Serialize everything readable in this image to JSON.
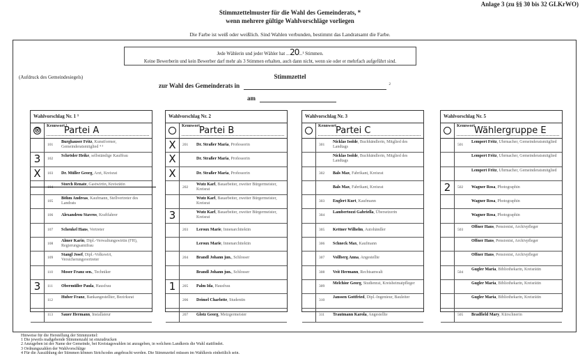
{
  "header": {
    "anlage": "Anlage 3 (zu §§ 30 bis 32 GLKrWO)",
    "title_line1": "Stimmzettelmuster für die Wahl des Gemeinderats, *",
    "title_line2": "wenn mehrere gültige Wahlvorschläge vorliegen",
    "farbe": "Die Farbe ist weiß oder weißlich. Sind Wahlen verbunden, bestimmt das Landratsamt die Farbe."
  },
  "info": {
    "line1_prefix": "Jede Wählerin und jeder Wähler hat ...",
    "votes": "20",
    "line1_suffix": "...¹ Stimmen.",
    "line2": "Keine Bewerberin und kein Bewerber darf mehr als 3 Stimmen erhalten, auch dann nicht, wenn sie oder er mehrfach aufgeführt sind."
  },
  "ballot": {
    "siegel": "(Aufdruck des Gemeindesiegels)",
    "title": "Stimmzettel",
    "zur_wahl": "zur Wahl des Gemeinderats in",
    "footnote_mark": "2",
    "am": "am"
  },
  "columns": [
    {
      "title": "Wahlvorschlag Nr. 1 ³",
      "kennwort_label": "Kennwort ³",
      "kennwort": "Partei A",
      "list_mark": "⊗",
      "rows": [
        {
          "num": "101",
          "name": "Burghauser Fritz",
          "desc": ", Kunstformer, Gemeinderatsmitglied ⁴ ³",
          "mark": ""
        },
        {
          "num": "102",
          "name": "Schröder Heike",
          "desc": ", selbständige Kauffrau",
          "mark": "3"
        },
        {
          "num": "103",
          "name": "Dr. Müller Georg",
          "desc": ", Arzt, Kreisrat",
          "mark": "X"
        },
        {
          "num": "104",
          "name": "Storch Renate",
          "desc": ", Gastwirtin, Kreisrätin",
          "mark": "",
          "struck": true
        },
        {
          "num": "105",
          "name": "Böhm Andreas",
          "desc": ", Kaufmann, Stellvertreter des Landrats",
          "mark": ""
        },
        {
          "num": "106",
          "name": "Alexandrou Stavros",
          "desc": ", Kraftfahrer",
          "mark": ""
        },
        {
          "num": "107",
          "name": "Schenkel Hans",
          "desc": ", Vertreter",
          "mark": ""
        },
        {
          "num": "108",
          "name": "Almer Karin",
          "desc": ", Dipl.-Verwaltungswirtin (FH), Regierungsamtfrau",
          "mark": ""
        },
        {
          "num": "109",
          "name": "Stangl Josef",
          "desc": ", Dipl.-Volkswirt, Versicherungsvertreter",
          "mark": ""
        },
        {
          "num": "110",
          "name": "Moser Franz sen.",
          "desc": ", Techniker",
          "mark": ""
        },
        {
          "num": "111",
          "name": "Obermüller Paula",
          "desc": ", Hausfrau",
          "mark": "3"
        },
        {
          "num": "112",
          "name": "Huber Franz",
          "desc": ", Bankangestellter, Bezirksrat",
          "mark": ""
        },
        {
          "num": "113",
          "name": "Sauer Hermann",
          "desc": ", Installateur",
          "mark": ""
        }
      ]
    },
    {
      "title": "Wahlvorschlag Nr. 2",
      "kennwort_label": "Kennwort",
      "kennwort": "Partei B",
      "list_mark": "",
      "rows": [
        {
          "num": "201",
          "name": "Dr. Straßer Maria",
          "desc": ", Professorin",
          "mark": "X"
        },
        {
          "num": "",
          "name": "Dr. Straßer Maria",
          "desc": ", Professorin",
          "mark": "X"
        },
        {
          "num": "",
          "name": "Dr. Straßer Maria",
          "desc": ", Professorin",
          "mark": "X"
        },
        {
          "num": "202",
          "name": "Wutz Karl",
          "desc": ", Bauarbeiter, zweiter Bürgermeister, Kreisrat",
          "mark": ""
        },
        {
          "num": "",
          "name": "Wutz Karl",
          "desc": ", Bauarbeiter, zweiter Bürgermeister, Kreisrat",
          "mark": ""
        },
        {
          "num": "",
          "name": "Wutz Karl",
          "desc": ", Bauarbeiter, zweiter Bürgermeister, Kreisrat",
          "mark": "3"
        },
        {
          "num": "203",
          "name": "Leroux Marie",
          "desc": ", Innenarchitektin",
          "mark": ""
        },
        {
          "num": "",
          "name": "Leroux Marie",
          "desc": ", Innenarchitektin",
          "mark": ""
        },
        {
          "num": "204",
          "name": "Brandl Johann jun.",
          "desc": ", Schlosser",
          "mark": ""
        },
        {
          "num": "",
          "name": "Brandl Johann jun.",
          "desc": ", Schlosser",
          "mark": ""
        },
        {
          "num": "205",
          "name": "Palm Ida",
          "desc": ", Hausfrau",
          "mark": "1"
        },
        {
          "num": "206",
          "name": "Deimel Charlotte",
          "desc": ", Studentin",
          "mark": ""
        },
        {
          "num": "207",
          "name": "Glotz Georg",
          "desc": ", Metzgermeister",
          "mark": ""
        }
      ]
    },
    {
      "title": "Wahlvorschlag Nr. 3",
      "kennwort_label": "Kennwort",
      "kennwort": "Partei C",
      "list_mark": "",
      "rows": [
        {
          "num": "301",
          "name": "Nicklas Isolde",
          "desc": ", Buchhändlerin, Mitglied des Landtags",
          "mark": ""
        },
        {
          "num": "",
          "name": "Nicklas Isolde",
          "desc": ", Buchhändlerin, Mitglied des Landtags",
          "mark": ""
        },
        {
          "num": "302",
          "name": "Bals Max",
          "desc": ", Fabrikant, Kreisrat",
          "mark": ""
        },
        {
          "num": "",
          "name": "Bals Max",
          "desc": ", Fabrikant, Kreisrat",
          "mark": ""
        },
        {
          "num": "303",
          "name": "Englert Kurt",
          "desc": ", Kaufmann",
          "mark": ""
        },
        {
          "num": "304",
          "name": "Lambertozzi Gabriella",
          "desc": ", Übersetzerin",
          "mark": ""
        },
        {
          "num": "305",
          "name": "Kettner Wilhelm",
          "desc": ", Autohändler",
          "mark": ""
        },
        {
          "num": "306",
          "name": "Schneck Max",
          "desc": ", Kaufmann",
          "mark": ""
        },
        {
          "num": "307",
          "name": "Vollberg Anna",
          "desc": ", Angestellte",
          "mark": ""
        },
        {
          "num": "308",
          "name": "Veit Hermann",
          "desc": ", Rechtsanwalt",
          "mark": ""
        },
        {
          "num": "309",
          "name": "Melchior Georg",
          "desc": ", Studienrat, Kreisheimatpfleger",
          "mark": ""
        },
        {
          "num": "310",
          "name": "Janssen Gottfried",
          "desc": ", Dipl.-Ingenieur, Bauleiter",
          "mark": ""
        },
        {
          "num": "311",
          "name": "Trautmann Karola",
          "desc": ", Angestellte",
          "mark": ""
        }
      ]
    },
    {
      "title": "Wahlvorschlag Nr. 5",
      "kennwort_label": "Kennwort",
      "kennwort": "Wählergruppe E",
      "list_mark": "",
      "rows": [
        {
          "num": "501",
          "name": "Lempert Fritz",
          "desc": ", Uhrmacher, Gemeinderatsmitglied",
          "mark": ""
        },
        {
          "num": "",
          "name": "Lempert Fritz",
          "desc": ", Uhrmacher, Gemeinderatsmitglied",
          "mark": ""
        },
        {
          "num": "",
          "name": "Lempert Fritz",
          "desc": ", Uhrmacher, Gemeinderatsmitglied",
          "mark": ""
        },
        {
          "num": "502",
          "name": "Wagner Rosa",
          "desc": ", Photographin",
          "mark": "2"
        },
        {
          "num": "",
          "name": "Wagner Rosa",
          "desc": ", Photographin",
          "mark": ""
        },
        {
          "num": "",
          "name": "Wagner Rosa",
          "desc": ", Photographin",
          "mark": ""
        },
        {
          "num": "503",
          "name": "Offner Hans",
          "desc": ", Pensionist, Archivpfleger",
          "mark": ""
        },
        {
          "num": "",
          "name": "Offner Hans",
          "desc": ", Pensionist, Archivpfleger",
          "mark": ""
        },
        {
          "num": "",
          "name": "Offner Hans",
          "desc": ", Pensionist, Archivpfleger",
          "mark": ""
        },
        {
          "num": "504",
          "name": "Gugler Maria",
          "desc": ", Bibliothekarin, Kreisrätin",
          "mark": ""
        },
        {
          "num": "",
          "name": "Gugler Maria",
          "desc": ", Bibliothekarin, Kreisrätin",
          "mark": ""
        },
        {
          "num": "",
          "name": "Gugler Maria",
          "desc": ", Bibliothekarin, Kreisrätin",
          "mark": ""
        },
        {
          "num": "505",
          "name": "Bradfield Mary",
          "desc": ", Kürschnerin",
          "mark": ""
        }
      ]
    }
  ],
  "notes": {
    "heading": "Hinweise für die Herstellung der Stimmzettel:",
    "items": [
      "1  Die jeweils maßgebende Stimmenzahl ist einzudrucken",
      "2  Anzugeben ist der Name der Gemeinde, bei Kreistagswahlen ist anzugeben, in welchem Landkreis die Wahl stattfindet.",
      "3  Ordnungszahlen der Wahlvorschläge",
      "4  Für die Auszählung der Stimmen können Strichcodes angebracht werden. Die Stimmzettel müssen im Wahlkreis einheitlich sein."
    ]
  }
}
